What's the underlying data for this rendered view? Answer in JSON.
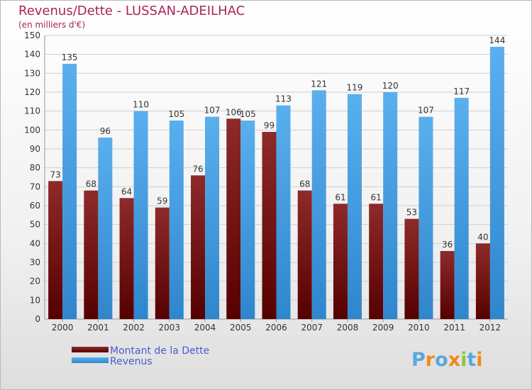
{
  "chart_data": {
    "type": "bar",
    "title": "Revenus/Dette - LUSSAN-ADEILHAC",
    "subtitle": "(en milliers d'€)",
    "categories": [
      "2000",
      "2001",
      "2002",
      "2003",
      "2004",
      "2005",
      "2006",
      "2007",
      "2008",
      "2009",
      "2010",
      "2011",
      "2012"
    ],
    "series": [
      {
        "name": "Montant de la Dette",
        "color": "#7a1414",
        "values": [
          73,
          68,
          64,
          59,
          76,
          106,
          99,
          68,
          61,
          61,
          53,
          36,
          40
        ]
      },
      {
        "name": "Revenus",
        "color": "#4ea4e6",
        "values": [
          135,
          96,
          110,
          105,
          107,
          105,
          113,
          121,
          119,
          120,
          107,
          117,
          144
        ]
      }
    ],
    "ylim": [
      0,
      150
    ],
    "yticks": [
      0,
      10,
      20,
      30,
      40,
      50,
      60,
      70,
      80,
      90,
      100,
      110,
      120,
      130,
      140,
      150
    ],
    "grid": true,
    "legend_position": "bottom-left"
  },
  "logo": {
    "letters": [
      "P",
      "r",
      "o",
      "x",
      "i",
      "t",
      "i"
    ]
  }
}
